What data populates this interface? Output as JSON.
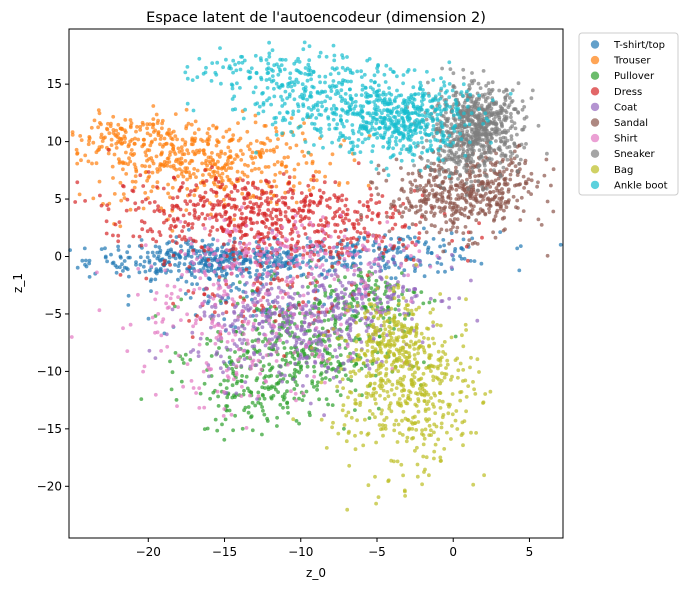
{
  "chart_data": {
    "type": "scatter",
    "title": "Espace latent de l'autoencodeur (dimension 2)",
    "xlabel": "z_0",
    "ylabel": "z_1",
    "xlim": [
      -25.2,
      7.2
    ],
    "ylim": [
      -24.5,
      19.8
    ],
    "xticks": [
      -20,
      -15,
      -10,
      -5,
      0,
      5
    ],
    "yticks": [
      -20,
      -15,
      -10,
      -5,
      0,
      5,
      10,
      15
    ],
    "xtick_labels": [
      "−20",
      "−15",
      "−10",
      "−5",
      "0",
      "5"
    ],
    "ytick_labels": [
      "−20",
      "−15",
      "−10",
      "−5",
      "0",
      "5",
      "10",
      "15"
    ],
    "grid": false,
    "legend_position": "outside upper right",
    "series": [
      {
        "name": "T-shirt/top",
        "color": "#1f77b4",
        "approx_clusters": [
          {
            "cx": -15.5,
            "cy": -0.3,
            "sx": 4.2,
            "sy": 0.8,
            "n": 420
          },
          {
            "cx": -4,
            "cy": 0.3,
            "sx": 3.5,
            "sy": 0.9,
            "n": 160
          },
          {
            "cx": -14,
            "cy": -3.5,
            "sx": 3.5,
            "sy": 2.0,
            "n": 80
          }
        ]
      },
      {
        "name": "Trouser",
        "color": "#ff7f0e",
        "approx_clusters": [
          {
            "cx": -16.5,
            "cy": 8.2,
            "sx": 4.2,
            "sy": 1.9,
            "n": 500
          },
          {
            "cx": -21.5,
            "cy": 10.5,
            "sx": 1.6,
            "sy": 1.0,
            "n": 90
          }
        ]
      },
      {
        "name": "Pullover",
        "color": "#2ca02c",
        "approx_clusters": [
          {
            "cx": -10.5,
            "cy": -8.5,
            "sx": 3.0,
            "sy": 2.6,
            "n": 420
          },
          {
            "cx": -5.5,
            "cy": -3.5,
            "sx": 2.0,
            "sy": 1.6,
            "n": 120
          },
          {
            "cx": -13.5,
            "cy": -12.5,
            "sx": 1.5,
            "sy": 1.6,
            "n": 70
          }
        ]
      },
      {
        "name": "Dress",
        "color": "#d62728",
        "approx_clusters": [
          {
            "cx": -13.5,
            "cy": 4.3,
            "sx": 4.6,
            "sy": 1.4,
            "n": 380
          },
          {
            "cx": -11.0,
            "cy": 2.0,
            "sx": 5.0,
            "sy": 1.4,
            "n": 260
          },
          {
            "cx": -13.0,
            "cy": -3.2,
            "sx": 3.0,
            "sy": 1.8,
            "n": 90
          }
        ]
      },
      {
        "name": "Coat",
        "color": "#9467bd",
        "approx_clusters": [
          {
            "cx": -10.5,
            "cy": -6.0,
            "sx": 3.3,
            "sy": 2.5,
            "n": 420
          },
          {
            "cx": -4.8,
            "cy": -3.0,
            "sx": 2.0,
            "sy": 1.5,
            "n": 120
          }
        ]
      },
      {
        "name": "Sandal",
        "color": "#8c564b",
        "approx_clusters": [
          {
            "cx": 0.3,
            "cy": 5.2,
            "sx": 2.3,
            "sy": 1.7,
            "n": 420
          },
          {
            "cx": 3.5,
            "cy": 7.0,
            "sx": 1.2,
            "sy": 1.2,
            "n": 70
          }
        ]
      },
      {
        "name": "Shirt",
        "color": "#e377c2",
        "approx_clusters": [
          {
            "cx": -13.5,
            "cy": -5.0,
            "sx": 4.5,
            "sy": 3.0,
            "n": 200
          },
          {
            "cx": -10.5,
            "cy": 0.5,
            "sx": 4.0,
            "sy": 1.6,
            "n": 170
          },
          {
            "cx": -15.0,
            "cy": -11.0,
            "sx": 1.5,
            "sy": 1.8,
            "n": 30
          }
        ]
      },
      {
        "name": "Sneaker",
        "color": "#7f7f7f",
        "approx_clusters": [
          {
            "cx": 1.5,
            "cy": 11.5,
            "sx": 1.5,
            "sy": 1.7,
            "n": 620
          },
          {
            "cx": 0.8,
            "cy": 8.5,
            "sx": 1.5,
            "sy": 1.3,
            "n": 110
          }
        ]
      },
      {
        "name": "Bag",
        "color": "#bcbd22",
        "approx_clusters": [
          {
            "cx": -4.0,
            "cy": -8.0,
            "sx": 1.3,
            "sy": 2.2,
            "n": 220
          },
          {
            "cx": -1.5,
            "cy": -11.0,
            "sx": 1.6,
            "sy": 3.0,
            "n": 230
          },
          {
            "cx": -5.5,
            "cy": -11.5,
            "sx": 1.6,
            "sy": 2.8,
            "n": 110
          },
          {
            "cx": -3.5,
            "cy": -16.0,
            "sx": 2.5,
            "sy": 3.0,
            "n": 70
          }
        ]
      },
      {
        "name": "Ankle boot",
        "color": "#17becf",
        "approx_clusters": [
          {
            "cx": -3.5,
            "cy": 12.0,
            "sx": 2.2,
            "sy": 1.8,
            "n": 520
          },
          {
            "cx": -9.0,
            "cy": 14.0,
            "sx": 3.0,
            "sy": 1.8,
            "n": 280
          },
          {
            "cx": -13.5,
            "cy": 16.3,
            "sx": 1.8,
            "sy": 0.8,
            "n": 70
          }
        ]
      }
    ]
  }
}
